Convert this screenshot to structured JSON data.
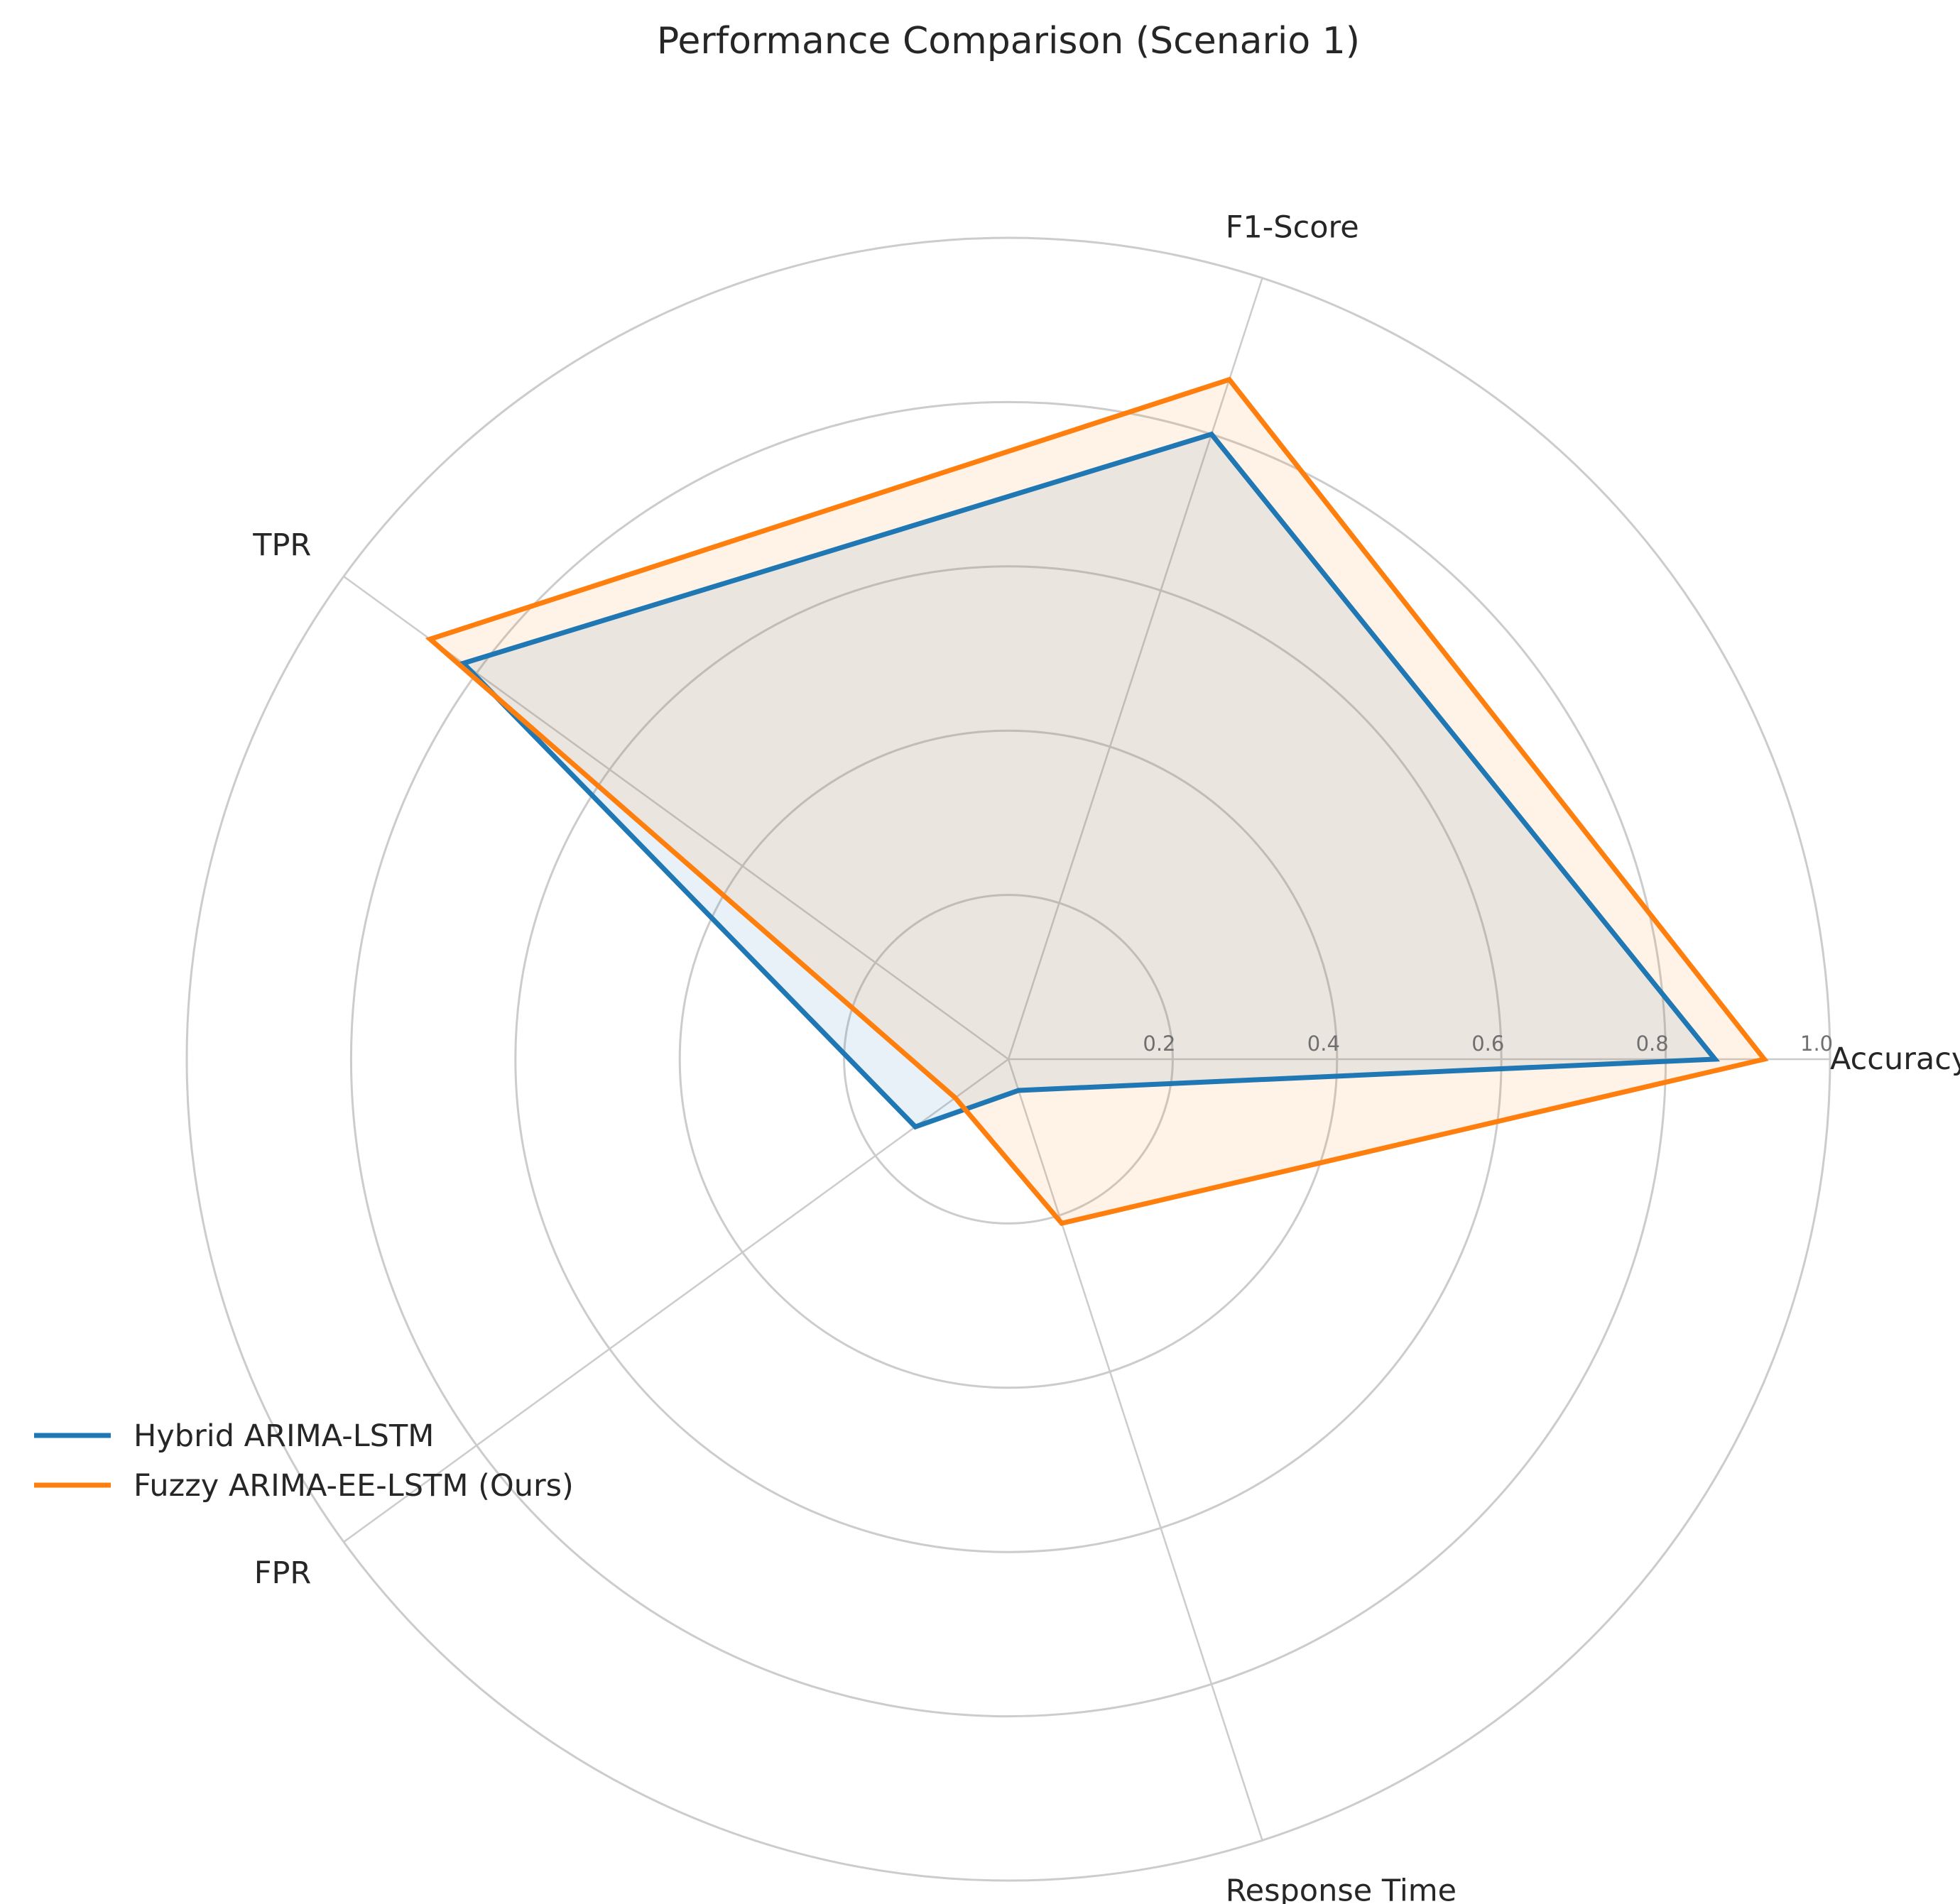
{
  "chart_data": {
    "type": "radar",
    "title": "Performance Comparison (Scenario 1)",
    "axes": [
      "Accuracy",
      "F1-Score",
      "TPR",
      "FPR",
      "Response Time"
    ],
    "rlim": [
      0,
      1.0
    ],
    "rticks": [
      0.2,
      0.4,
      0.6,
      0.8,
      1.0
    ],
    "rtick_labels": [
      "0.2",
      "0.4",
      "0.6",
      "0.8",
      "1.0"
    ],
    "grid": true,
    "legend_placement": "lower-left",
    "series": [
      {
        "name": "Hybrid ARIMA-LSTM",
        "color": "#1f77b4",
        "values": [
          0.86,
          0.8,
          0.82,
          0.14,
          0.04
        ]
      },
      {
        "name": "Fuzzy ARIMA-EE-LSTM (Ours)",
        "color": "#ff7f0e",
        "values": [
          0.92,
          0.87,
          0.87,
          0.08,
          0.21
        ]
      }
    ]
  }
}
